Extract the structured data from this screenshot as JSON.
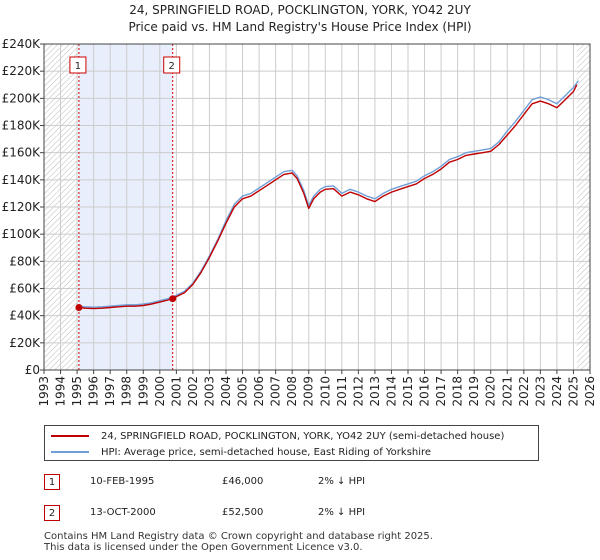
{
  "header": {
    "title": "24, SPRINGFIELD ROAD, POCKLINGTON, YORK, YO42 2UY",
    "subtitle": "Price paid vs. HM Land Registry's House Price Index (HPI)"
  },
  "colors": {
    "price_line": "#c00000",
    "hpi_line": "#6f9fd8",
    "shade": "#e8eefb",
    "grid": "#cccccc",
    "marker_line": "#cc0000"
  },
  "chart_data": {
    "type": "line",
    "title": "24, SPRINGFIELD ROAD, POCKLINGTON, YORK, YO42 2UY",
    "subtitle": "Price paid vs. HM Land Registry's House Price Index (HPI)",
    "xlabel": "",
    "ylabel": "",
    "xlim": [
      1993,
      2026
    ],
    "ylim": [
      0,
      240000
    ],
    "x_ticks": [
      "1993",
      "1994",
      "1995",
      "1996",
      "1997",
      "1998",
      "1999",
      "2000",
      "2001",
      "2002",
      "2003",
      "2004",
      "2005",
      "2006",
      "2007",
      "2008",
      "2009",
      "2010",
      "2011",
      "2012",
      "2013",
      "2014",
      "2015",
      "2016",
      "2017",
      "2018",
      "2019",
      "2020",
      "2021",
      "2022",
      "2023",
      "2024",
      "2025",
      "2026"
    ],
    "y_ticks": [
      {
        "value": 0,
        "label": "£0"
      },
      {
        "value": 20000,
        "label": "£20K"
      },
      {
        "value": 40000,
        "label": "£40K"
      },
      {
        "value": 60000,
        "label": "£60K"
      },
      {
        "value": 80000,
        "label": "£80K"
      },
      {
        "value": 100000,
        "label": "£100K"
      },
      {
        "value": 120000,
        "label": "£120K"
      },
      {
        "value": 140000,
        "label": "£140K"
      },
      {
        "value": 160000,
        "label": "£160K"
      },
      {
        "value": 180000,
        "label": "£180K"
      },
      {
        "value": 200000,
        "label": "£200K"
      },
      {
        "value": 220000,
        "label": "£220K"
      },
      {
        "value": 240000,
        "label": "£240K"
      }
    ],
    "grid": true,
    "shaded_range": [
      1995.11,
      2000.78
    ],
    "future_hatch_from": 2025.2,
    "sales": [
      {
        "label": "1",
        "x": 1995.11,
        "price": 46000
      },
      {
        "label": "2",
        "x": 2000.78,
        "price": 52500
      }
    ],
    "series": [
      {
        "name": "24, SPRINGFIELD ROAD, POCKLINGTON, YORK, YO42 2UY (semi-detached house)",
        "color": "#c00000",
        "points": [
          [
            1995.11,
            46000
          ],
          [
            1995.5,
            45500
          ],
          [
            1996,
            45200
          ],
          [
            1996.5,
            45500
          ],
          [
            1997,
            46000
          ],
          [
            1997.5,
            46500
          ],
          [
            1998,
            47000
          ],
          [
            1998.5,
            47000
          ],
          [
            1999,
            47500
          ],
          [
            1999.5,
            48500
          ],
          [
            2000,
            50000
          ],
          [
            2000.5,
            51500
          ],
          [
            2000.78,
            52500
          ],
          [
            2001,
            54000
          ],
          [
            2001.5,
            57000
          ],
          [
            2002,
            63000
          ],
          [
            2002.5,
            72000
          ],
          [
            2003,
            83000
          ],
          [
            2003.5,
            95000
          ],
          [
            2004,
            108000
          ],
          [
            2004.5,
            120000
          ],
          [
            2005,
            126000
          ],
          [
            2005.5,
            128000
          ],
          [
            2006,
            132000
          ],
          [
            2006.5,
            136000
          ],
          [
            2007,
            140000
          ],
          [
            2007.5,
            144000
          ],
          [
            2008,
            145000
          ],
          [
            2008.3,
            141000
          ],
          [
            2008.7,
            130000
          ],
          [
            2009,
            119000
          ],
          [
            2009.3,
            126000
          ],
          [
            2009.7,
            131000
          ],
          [
            2010,
            133000
          ],
          [
            2010.5,
            133500
          ],
          [
            2011,
            128000
          ],
          [
            2011.5,
            131000
          ],
          [
            2012,
            129000
          ],
          [
            2012.5,
            126000
          ],
          [
            2013,
            124000
          ],
          [
            2013.5,
            128000
          ],
          [
            2014,
            131000
          ],
          [
            2014.5,
            133000
          ],
          [
            2015,
            135000
          ],
          [
            2015.5,
            137000
          ],
          [
            2016,
            141000
          ],
          [
            2016.5,
            144000
          ],
          [
            2017,
            148000
          ],
          [
            2017.5,
            153000
          ],
          [
            2018,
            155000
          ],
          [
            2018.5,
            158000
          ],
          [
            2019,
            159000
          ],
          [
            2019.5,
            160000
          ],
          [
            2020,
            161000
          ],
          [
            2020.5,
            166000
          ],
          [
            2021,
            173000
          ],
          [
            2021.5,
            180000
          ],
          [
            2022,
            188000
          ],
          [
            2022.5,
            196000
          ],
          [
            2023,
            198000
          ],
          [
            2023.5,
            196000
          ],
          [
            2024,
            193000
          ],
          [
            2024.5,
            199000
          ],
          [
            2025,
            205000
          ],
          [
            2025.2,
            210000
          ]
        ]
      },
      {
        "name": "HPI: Average price, semi-detached house, East Riding of Yorkshire",
        "color": "#6f9fd8",
        "points": [
          [
            1995,
            47000
          ],
          [
            1995.5,
            46500
          ],
          [
            1996,
            46200
          ],
          [
            1996.5,
            46500
          ],
          [
            1997,
            47000
          ],
          [
            1997.5,
            47500
          ],
          [
            1998,
            48000
          ],
          [
            1998.5,
            48000
          ],
          [
            1999,
            48500
          ],
          [
            1999.5,
            49500
          ],
          [
            2000,
            51000
          ],
          [
            2000.5,
            52500
          ],
          [
            2001,
            55000
          ],
          [
            2001.5,
            58000
          ],
          [
            2002,
            64000
          ],
          [
            2002.5,
            73000
          ],
          [
            2003,
            84000
          ],
          [
            2003.5,
            96000
          ],
          [
            2004,
            110000
          ],
          [
            2004.5,
            122000
          ],
          [
            2005,
            128000
          ],
          [
            2005.5,
            130000
          ],
          [
            2006,
            134000
          ],
          [
            2006.5,
            138000
          ],
          [
            2007,
            142000
          ],
          [
            2007.5,
            146000
          ],
          [
            2008,
            147000
          ],
          [
            2008.3,
            143000
          ],
          [
            2008.7,
            132000
          ],
          [
            2009,
            121000
          ],
          [
            2009.3,
            128000
          ],
          [
            2009.7,
            133000
          ],
          [
            2010,
            135000
          ],
          [
            2010.5,
            135500
          ],
          [
            2011,
            130000
          ],
          [
            2011.5,
            133000
          ],
          [
            2012,
            131000
          ],
          [
            2012.5,
            128000
          ],
          [
            2013,
            126000
          ],
          [
            2013.5,
            130000
          ],
          [
            2014,
            133000
          ],
          [
            2014.5,
            135000
          ],
          [
            2015,
            137000
          ],
          [
            2015.5,
            139000
          ],
          [
            2016,
            143000
          ],
          [
            2016.5,
            146000
          ],
          [
            2017,
            150000
          ],
          [
            2017.5,
            155000
          ],
          [
            2018,
            157000
          ],
          [
            2018.5,
            160000
          ],
          [
            2019,
            161000
          ],
          [
            2019.5,
            162000
          ],
          [
            2020,
            163000
          ],
          [
            2020.5,
            168000
          ],
          [
            2021,
            176000
          ],
          [
            2021.5,
            183000
          ],
          [
            2022,
            191000
          ],
          [
            2022.5,
            199000
          ],
          [
            2023,
            201000
          ],
          [
            2023.5,
            199000
          ],
          [
            2024,
            196000
          ],
          [
            2024.5,
            202000
          ],
          [
            2025,
            208000
          ],
          [
            2025.3,
            213000
          ]
        ]
      }
    ]
  },
  "legend": {
    "items": [
      {
        "label": "24, SPRINGFIELD ROAD, POCKLINGTON, YORK, YO42 2UY (semi-detached house)",
        "color": "#c00000"
      },
      {
        "label": "HPI: Average price, semi-detached house, East Riding of Yorkshire",
        "color": "#6f9fd8"
      }
    ]
  },
  "sales_table": [
    {
      "num": "1",
      "date": "10-FEB-1995",
      "price": "£46,000",
      "diff": "2% ↓ HPI"
    },
    {
      "num": "2",
      "date": "13-OCT-2000",
      "price": "£52,500",
      "diff": "2% ↓ HPI"
    }
  ],
  "footer": {
    "line1": "Contains HM Land Registry data © Crown copyright and database right 2025.",
    "line2": "This data is licensed under the Open Government Licence v3.0."
  }
}
